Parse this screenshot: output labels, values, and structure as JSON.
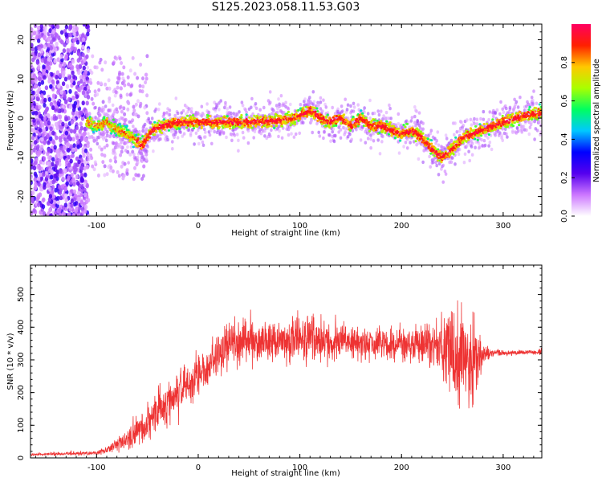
{
  "title": "S125.2023.058.11.53.G03",
  "colorbar": {
    "label": "Normalized spectral amplitude",
    "range": [
      0,
      1
    ],
    "ticks": [
      "0.0",
      "0.2",
      "0.4",
      "0.6",
      "0.8"
    ],
    "tick_values": [
      0,
      0.2,
      0.4,
      0.6,
      0.8
    ],
    "colors": [
      "#ffffff",
      "#cc77ff",
      "#5500ee",
      "#0000ff",
      "#00c8ff",
      "#00ff60",
      "#aaff00",
      "#ffc800",
      "#ff2000",
      "#ff0060"
    ]
  },
  "chart_data": [
    {
      "type": "heatmap",
      "xlabel": "Height of straight line (km)",
      "ylabel": "Frequency (Hz)",
      "xlim": [
        -165,
        338
      ],
      "ylim": [
        -25,
        24
      ],
      "xticks": [
        -100,
        0,
        100,
        200,
        300
      ],
      "yticks": [
        -20,
        -10,
        0,
        10,
        20
      ],
      "ridge": {
        "x": [
          -110,
          -100,
          -90,
          -80,
          -70,
          -60,
          -55,
          -45,
          -35,
          -20,
          -10,
          0,
          20,
          40,
          60,
          80,
          95,
          110,
          120,
          130,
          140,
          150,
          160,
          170,
          180,
          190,
          200,
          210,
          220,
          230,
          240,
          250,
          260,
          280,
          300,
          320,
          338
        ],
        "y": [
          -1,
          -2,
          -1,
          -3,
          -4,
          -6,
          -7,
          -3,
          -2,
          -1,
          -1,
          -1,
          -1,
          -1,
          -1,
          -0.5,
          0,
          2,
          0,
          -1,
          0,
          -2,
          0,
          -2,
          -2,
          -3,
          -4,
          -3,
          -5,
          -8,
          -10,
          -8,
          -5,
          -3,
          -1,
          0.5,
          1.5
        ]
      },
      "noise_x_range": [
        -165,
        -108
      ],
      "colormap": "rainbow"
    },
    {
      "type": "line",
      "xlabel": "Height of straight line (km)",
      "ylabel": "SNR (10 * v/v)",
      "xlim": [
        -165,
        338
      ],
      "ylim": [
        0,
        590
      ],
      "xticks": [
        -100,
        0,
        100,
        200,
        300
      ],
      "yticks": [
        0,
        100,
        200,
        300,
        400,
        500
      ],
      "color": "#ee3333",
      "envelope": {
        "x": [
          -165,
          -100,
          -90,
          -80,
          -70,
          -60,
          -50,
          -40,
          -30,
          -20,
          -10,
          0,
          10,
          20,
          30,
          40,
          60,
          80,
          100,
          120,
          140,
          160,
          180,
          200,
          220,
          240,
          250,
          260,
          270,
          280,
          290,
          300,
          338
        ],
        "mean": [
          10,
          15,
          25,
          40,
          55,
          80,
          110,
          140,
          170,
          200,
          230,
          250,
          280,
          320,
          350,
          360,
          355,
          360,
          365,
          360,
          355,
          350,
          350,
          345,
          345,
          340,
          330,
          310,
          300,
          310,
          320,
          320,
          325
        ],
        "spread": [
          4,
          6,
          10,
          20,
          30,
          45,
          55,
          65,
          70,
          70,
          70,
          60,
          65,
          70,
          70,
          60,
          55,
          60,
          65,
          60,
          55,
          50,
          50,
          50,
          55,
          80,
          120,
          180,
          140,
          30,
          10,
          8,
          8
        ]
      }
    }
  ]
}
